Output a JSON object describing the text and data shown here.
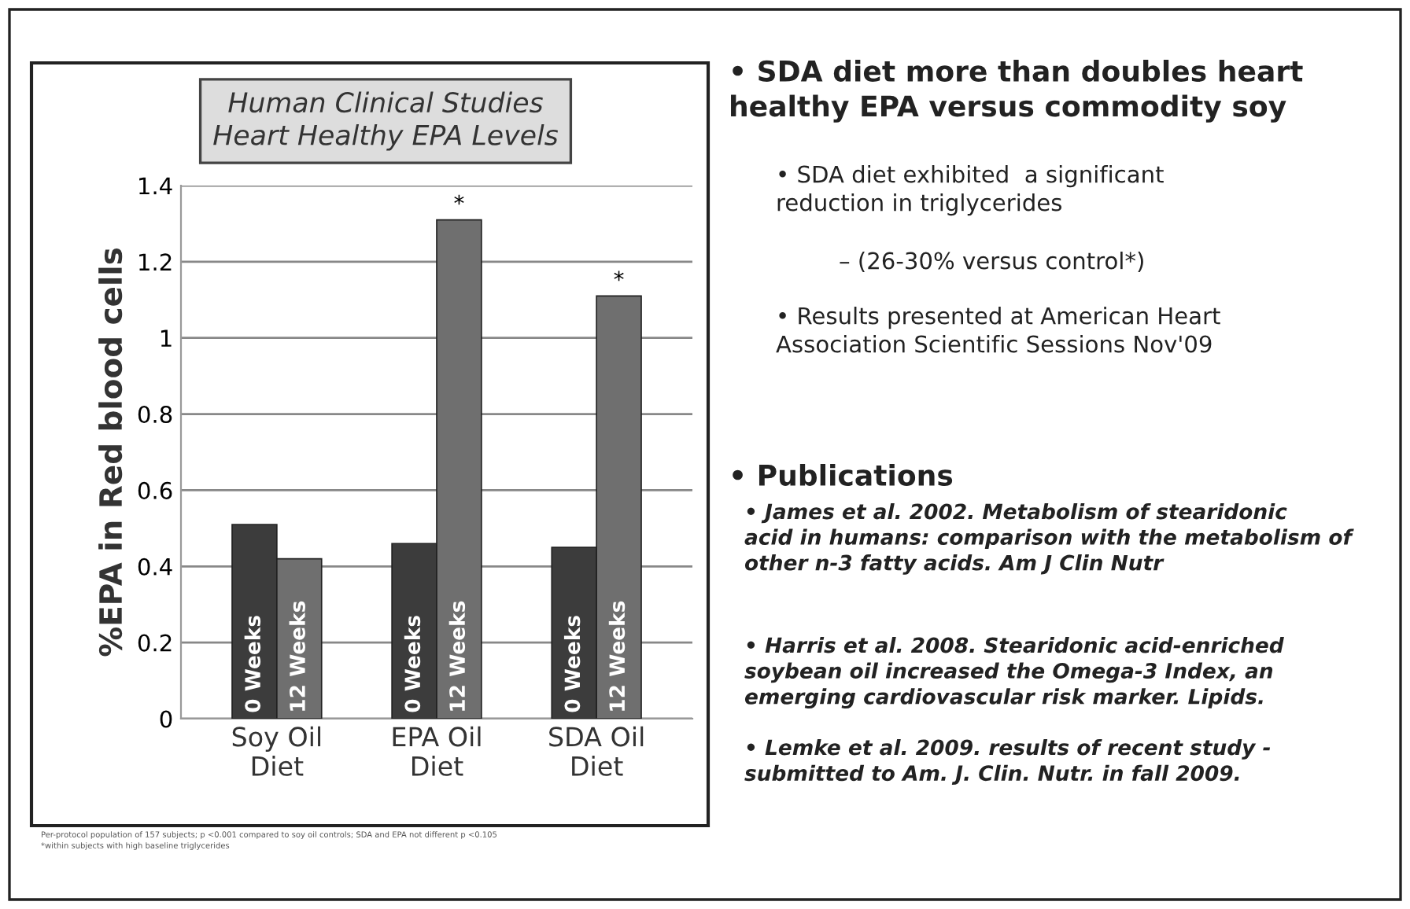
{
  "chart_data": [
    {
      "type": "bar",
      "title": "Human Clinical Studies\nHeart Healthy EPA Levels",
      "ylabel": "%EPA in Red blood cells",
      "categories": [
        "Soy Oil\nDiet",
        "EPA Oil\nDiet",
        "SDA Oil\nDiet"
      ],
      "series": [
        {
          "name": "0 Weeks",
          "color": "#3c3c3c",
          "values": [
            0.51,
            0.46,
            0.45
          ]
        },
        {
          "name": "12 Weeks",
          "color": "#6f6f6f",
          "values": [
            0.42,
            1.31,
            1.11
          ]
        }
      ],
      "ylim": [
        0,
        1.4
      ],
      "yticks": [
        0,
        0.2,
        0.4,
        0.6,
        0.8,
        1,
        1.2,
        1.4
      ],
      "grid": "y",
      "legend": false,
      "annotations": [
        {
          "text": "*",
          "x": "EPA Oil\nDiet",
          "y": 1.31
        },
        {
          "text": "*",
          "x": "SDA Oil\nDiet",
          "y": 1.11
        },
        "Per-protocol population of 157 subjects; p <0.001 compared to soy oil controls; SDA and EPA not different p <0.105",
        "*within subjects with high baseline triglycerides"
      ]
    },
    {
      "type": "other",
      "annotations": [
        "• SDA diet more than doubles heart healthy EPA versus commodity soy",
        "• SDA diet exhibited  a significant reduction in triglycerides",
        "– (26-30% versus control*)",
        "• Results presented at American Heart Association Scientific Sessions Nov'09",
        "• Publications",
        "• James et al. 2002. Metabolism of stearidonic acid in humans: comparison with the metabolism of other n-3 fatty acids. Am J Clin Nutr",
        "• Harris et al. 2008. Stearidonic acid-enriched soybean oil increased the Omega-3 Index, an emerging cardiovascular risk marker. Lipids.",
        "• Lemke et al. 2009. results of recent study - submitted to Am. J. Clin. Nutr. in fall 2009."
      ]
    }
  ]
}
